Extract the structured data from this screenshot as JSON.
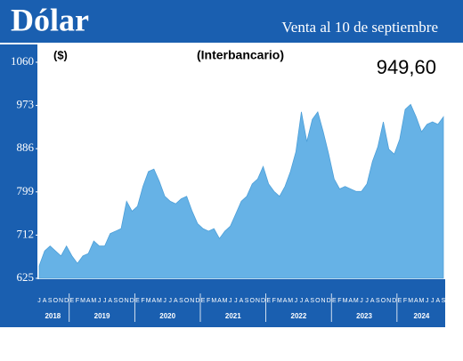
{
  "chart_data": {
    "type": "area",
    "title": "Dólar",
    "subtitle": "Venta al 10 de septiembre",
    "y_label": "($)",
    "note": "(Interbancario)",
    "annotation": "949,60",
    "color": "#66b2e6",
    "categories": [
      "J",
      "A",
      "S",
      "O",
      "N",
      "D",
      "E",
      "F",
      "M",
      "A",
      "M",
      "J",
      "J",
      "A",
      "S",
      "O",
      "N",
      "D",
      "E",
      "F",
      "M",
      "A",
      "M",
      "J",
      "J",
      "A",
      "S",
      "O",
      "N",
      "D",
      "E",
      "F",
      "M",
      "A",
      "M",
      "J",
      "J",
      "A",
      "S",
      "O",
      "N",
      "D",
      "E",
      "F",
      "M",
      "A",
      "M",
      "J",
      "J",
      "A",
      "S",
      "O",
      "N",
      "D",
      "E",
      "F",
      "M",
      "A",
      "M",
      "J",
      "J",
      "A",
      "S",
      "O",
      "N",
      "D",
      "E",
      "F",
      "M",
      "A",
      "M",
      "J",
      "J",
      "A",
      "S"
    ],
    "values": [
      650,
      680,
      690,
      680,
      670,
      690,
      670,
      655,
      670,
      675,
      700,
      690,
      690,
      715,
      720,
      725,
      780,
      760,
      770,
      810,
      840,
      845,
      820,
      790,
      780,
      775,
      785,
      790,
      760,
      735,
      725,
      720,
      725,
      705,
      720,
      730,
      755,
      780,
      790,
      815,
      825,
      850,
      815,
      800,
      790,
      810,
      840,
      880,
      960,
      900,
      945,
      960,
      920,
      875,
      825,
      805,
      810,
      805,
      800,
      800,
      815,
      860,
      890,
      940,
      885,
      875,
      905,
      965,
      975,
      950,
      920,
      935,
      940,
      935,
      950
    ],
    "years": [
      "2018",
      "2019",
      "2020",
      "2021",
      "2022",
      "2023",
      "2024"
    ],
    "ylim": [
      625,
      1060
    ],
    "yticks": [
      625,
      712,
      799,
      886,
      973,
      1060
    ]
  }
}
